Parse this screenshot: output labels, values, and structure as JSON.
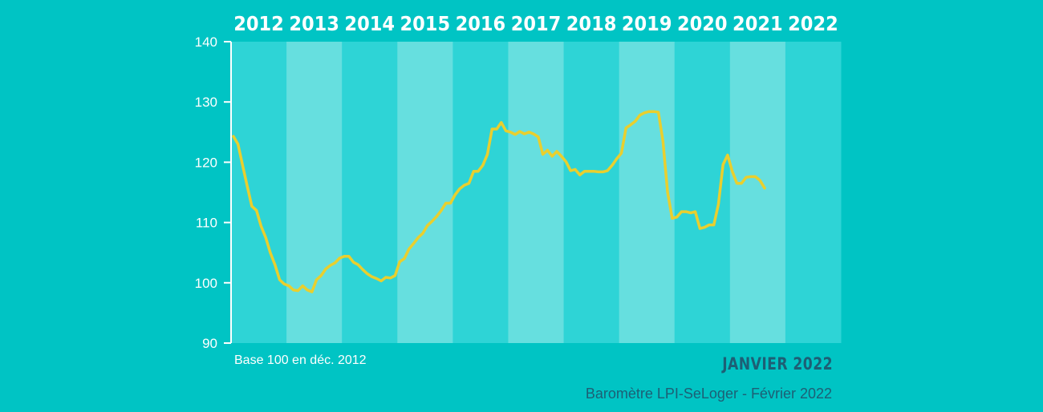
{
  "chart_data": {
    "type": "line",
    "title": "",
    "xlabel": "",
    "ylabel": "",
    "year_labels": [
      "2012",
      "2013",
      "2014",
      "2015",
      "2016",
      "2017",
      "2018",
      "2019",
      "2020",
      "2021",
      "2022"
    ],
    "yticks": [
      90,
      100,
      110,
      120,
      130,
      140
    ],
    "ylim": [
      90,
      140
    ],
    "x_start_year": 2012,
    "points_per_year": 12,
    "series": [
      {
        "name": "",
        "values": [
          124.3,
          123.0,
          119.5,
          116.0,
          112.7,
          112.0,
          109.4,
          107.5,
          105.0,
          103.0,
          100.5,
          99.8,
          99.5,
          98.8,
          98.7,
          99.5,
          98.8,
          98.5,
          100.5,
          101.2,
          102.3,
          102.9,
          103.3,
          104.1,
          104.4,
          104.4,
          103.4,
          103.0,
          102.2,
          101.5,
          101.0,
          100.7,
          100.3,
          100.9,
          100.8,
          101.2,
          103.5,
          104.0,
          105.6,
          106.5,
          107.5,
          108.2,
          109.5,
          110.2,
          111.0,
          112.0,
          113.2,
          113.2,
          114.6,
          115.6,
          116.2,
          116.5,
          118.5,
          118.5,
          119.5,
          121.3,
          125.5,
          125.5,
          126.6,
          125.2,
          125.0,
          124.6,
          125.1,
          124.7,
          125.0,
          124.7,
          124.2,
          121.3,
          122.0,
          121.0,
          121.8,
          121.0,
          120.1,
          118.6,
          118.8,
          117.9,
          118.5,
          118.5,
          118.5,
          118.4,
          118.4,
          118.6,
          119.5,
          120.6,
          121.5,
          125.7,
          126.2,
          126.8,
          127.8,
          128.2,
          128.4,
          128.4,
          128.3,
          123.5,
          115.0,
          110.7,
          110.9,
          111.8,
          111.8,
          111.6,
          111.8,
          109.0,
          109.2,
          109.6,
          109.6,
          113.0,
          119.6,
          121.2,
          118.5,
          116.5,
          116.5,
          117.5,
          117.6,
          117.6,
          117.0,
          115.7
        ]
      }
    ],
    "colors": {
      "background": "#00c4c4",
      "band_dark": "#2ed4d6",
      "band_light": "#66dfdf",
      "line": "#e9cf2e",
      "axis": "#ffffff"
    },
    "notes": {
      "base": "Base 100 en déc. 2012",
      "date": "JANVIER 2022",
      "source": "Baromètre LPI-SeLoger - Février 2022"
    }
  }
}
